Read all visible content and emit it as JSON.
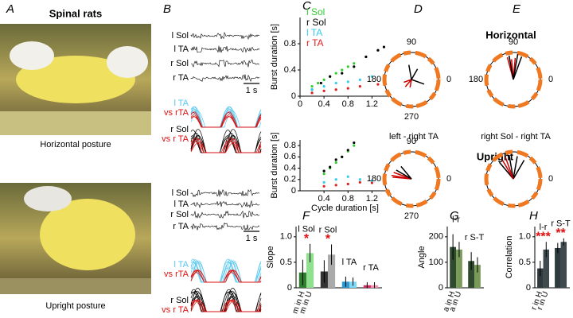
{
  "panel_labels": [
    "A",
    "B",
    "C",
    "D",
    "E",
    "F",
    "G",
    "H"
  ],
  "A": {
    "title": "Spinal rats",
    "captions": [
      "Horizontal posture",
      "Upright posture"
    ]
  },
  "B": {
    "rows": [
      {
        "muscles": [
          "l Sol",
          "l TA",
          "r Sol",
          "r TA"
        ],
        "scale": "1 s",
        "overlays": [
          [
            "l TA",
            "vs rTA"
          ],
          [
            "r Sol",
            "vs r TA"
          ]
        ]
      },
      {
        "muscles": [
          "l Sol",
          "l TA",
          "r Sol",
          "r TA"
        ],
        "scale": "1 s",
        "overlays": [
          [
            "l TA",
            "vs rTA"
          ],
          [
            "r Sol",
            "vs r TA"
          ]
        ]
      }
    ]
  },
  "postures": [
    "Horizontal",
    "Upright"
  ],
  "captions": [
    "left - right TA",
    "right Sol - right TA"
  ],
  "chart_data": [
    {
      "type": "scatter",
      "ylabel": "Burst duration [s]",
      "xlim": [
        0,
        1.5
      ],
      "xticks": [
        0,
        0.4,
        0.8,
        1.2
      ],
      "ylim": [
        0,
        1.2
      ],
      "yticks": [
        0,
        0.4,
        0.8
      ],
      "series": [
        {
          "name": "l Sol",
          "color": "#33cc33",
          "x": [
            0.2,
            0.3,
            0.4,
            0.5,
            0.6,
            0.7,
            0.8,
            0.9
          ],
          "values": [
            0.15,
            0.2,
            0.25,
            0.3,
            0.35,
            0.4,
            0.45,
            0.5
          ]
        },
        {
          "name": "r Sol",
          "color": "#000000",
          "x": [
            0.2,
            0.35,
            0.5,
            0.7,
            0.9,
            1.1,
            1.3,
            1.4
          ],
          "values": [
            0.1,
            0.2,
            0.3,
            0.35,
            0.45,
            0.6,
            0.7,
            0.75
          ]
        },
        {
          "name": "l TA",
          "color": "#33ccee",
          "x": [
            0.2,
            0.4,
            0.6,
            0.8,
            1.0,
            1.2
          ],
          "values": [
            0.1,
            0.15,
            0.2,
            0.22,
            0.25,
            0.3
          ]
        },
        {
          "name": "r TA",
          "color": "#dd2222",
          "x": [
            0.2,
            0.4,
            0.6,
            0.8,
            1.0,
            1.3
          ],
          "values": [
            0.05,
            0.08,
            0.1,
            0.12,
            0.15,
            0.18
          ]
        }
      ]
    },
    {
      "type": "scatter",
      "ylabel": "Burst duration [s]",
      "xlabel": "Cycle duration [s]",
      "xlim": [
        0,
        1.5
      ],
      "xticks": [
        0.4,
        0.8,
        1.2
      ],
      "ylim": [
        0,
        0.9
      ],
      "yticks": [
        0,
        0.2,
        0.4,
        0.6,
        0.8
      ],
      "series": [
        {
          "color": "#33cc33",
          "x": [
            0.4,
            0.5,
            0.6,
            0.7,
            0.8,
            0.9
          ],
          "values": [
            0.3,
            0.4,
            0.5,
            0.6,
            0.7,
            0.8
          ]
        },
        {
          "color": "#000000",
          "x": [
            0.4,
            0.5,
            0.6,
            0.7,
            0.8,
            0.9
          ],
          "values": [
            0.35,
            0.42,
            0.55,
            0.6,
            0.72,
            0.85
          ]
        },
        {
          "color": "#33ccee",
          "x": [
            0.4,
            0.6,
            0.8,
            1.0,
            1.2
          ],
          "values": [
            0.15,
            0.2,
            0.25,
            0.2,
            0.18
          ]
        },
        {
          "color": "#dd2222",
          "x": [
            0.4,
            0.6,
            0.8,
            1.0,
            1.2
          ],
          "values": [
            0.08,
            0.1,
            0.12,
            0.15,
            0.14
          ]
        }
      ]
    },
    {
      "type": "polar",
      "thetaticks": [
        90,
        180,
        0,
        270
      ],
      "rlim": [
        0,
        1
      ],
      "series": [
        {
          "color": "#cc0000",
          "angles": [
            200,
            230,
            260
          ],
          "values": [
            0.3,
            0.35,
            0.3
          ]
        },
        {
          "color": "#000000",
          "angles": [
            340,
            60,
            100
          ],
          "values": [
            0.5,
            0.45,
            0.55
          ]
        }
      ]
    },
    {
      "type": "polar",
      "thetaticks": [
        90,
        180,
        0
      ],
      "rlim": [
        0,
        1
      ],
      "series": [
        {
          "color": "#cc0000",
          "angles": [
            85,
            95,
            105
          ],
          "values": [
            0.8,
            0.75,
            0.85
          ]
        },
        {
          "color": "#000000",
          "angles": [
            70,
            80,
            100
          ],
          "values": [
            0.9,
            0.95,
            0.9
          ]
        }
      ]
    },
    {
      "type": "polar",
      "thetaticks": [
        90,
        180,
        0,
        270
      ],
      "rlim": [
        0,
        1
      ],
      "series": [
        {
          "color": "#cc0000",
          "angles": [
            160,
            170,
            175
          ],
          "values": [
            0.7,
            0.75,
            0.7
          ]
        },
        {
          "color": "#000000",
          "angles": [
            130,
            150
          ],
          "values": [
            0.6,
            0.65
          ]
        }
      ]
    },
    {
      "type": "polar",
      "thetaticks": [
        0
      ],
      "rlim": [
        0,
        1
      ],
      "series": [
        {
          "color": "#000000",
          "angles": [
            60,
            80,
            100,
            130
          ],
          "values": [
            0.8,
            0.85,
            0.9,
            0.8
          ]
        },
        {
          "color": "#cc0000",
          "angles": [
            110,
            120
          ],
          "values": [
            0.85,
            0.8
          ]
        }
      ]
    },
    {
      "type": "bar",
      "ylabel": "Slope",
      "ylim": [
        0,
        1.2
      ],
      "yticks": [
        0,
        0.5,
        {
          "value": 1,
          "label": "1.0"
        }
      ],
      "categories": [
        "l Sol",
        "r Sol",
        "l TA",
        "r TA"
      ],
      "significance": [
        "*",
        "*",
        null,
        null
      ],
      "series": [
        {
          "name": "m in H",
          "colors": [
            "#2e7d2e",
            "#333333",
            "#2a9ad0",
            "#d03060"
          ],
          "values": [
            0.3,
            0.32,
            0.12,
            0.05
          ],
          "errors": [
            0.25,
            0.22,
            0.1,
            0.06
          ]
        },
        {
          "name": "m in U",
          "colors": [
            "#8fe08f",
            "#aaaaaa",
            "#80d8f2",
            "#f090b0"
          ],
          "values": [
            0.68,
            0.65,
            0.12,
            0.05
          ],
          "errors": [
            0.18,
            0.2,
            0.08,
            0.06
          ]
        }
      ]
    },
    {
      "type": "bar",
      "ylabel": "Angle",
      "ylim": [
        0,
        240
      ],
      "yticks": [
        0,
        100,
        200
      ],
      "categories": [
        "l-r",
        "r S-T"
      ],
      "significance": [
        null,
        null
      ],
      "series": [
        {
          "name": "a in H",
          "colors": [
            "#2f4a2f",
            "#2f4a2f"
          ],
          "values": [
            160,
            105
          ],
          "errors": [
            50,
            35
          ]
        },
        {
          "name": "a in U",
          "colors": [
            "#7a9a5a",
            "#7a9a5a"
          ],
          "values": [
            150,
            90
          ],
          "errors": [
            30,
            30
          ]
        }
      ]
    },
    {
      "type": "bar",
      "ylabel": "Correlation",
      "ylim": [
        0,
        1.2
      ],
      "yticks": [
        0,
        0.5,
        {
          "value": 1,
          "label": "1.0"
        }
      ],
      "categories": [
        "l-r",
        "r S-T"
      ],
      "significance": [
        "***",
        "**"
      ],
      "series": [
        {
          "name": "r in H",
          "colors": [
            "#2f3a3f",
            "#2f3a3f"
          ],
          "values": [
            0.38,
            0.78
          ],
          "errors": [
            0.15,
            0.1
          ]
        },
        {
          "name": "r in U",
          "colors": [
            "#3f4a4f",
            "#3f4a4f"
          ],
          "values": [
            0.75,
            0.9
          ],
          "errors": [
            0.15,
            0.07
          ]
        }
      ]
    }
  ]
}
